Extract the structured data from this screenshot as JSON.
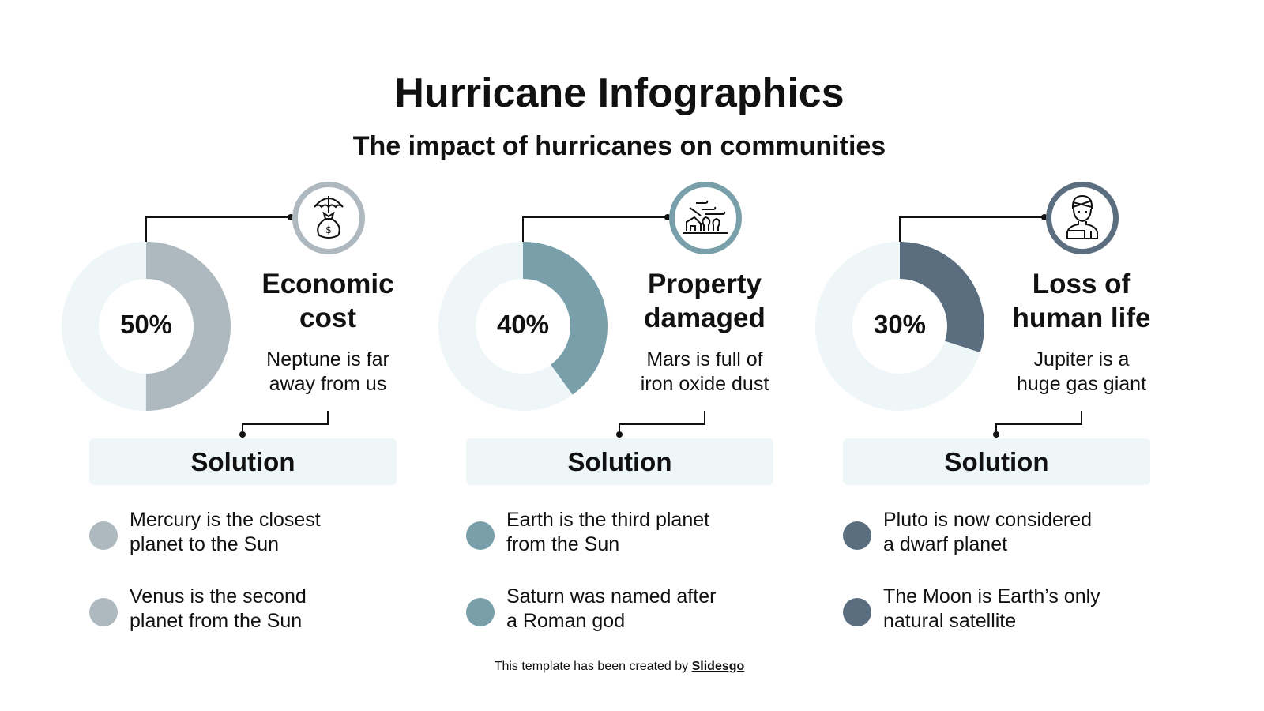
{
  "title": "Hurricane Infographics",
  "subtitle": "The impact of hurricanes on communities",
  "colors": {
    "light": "#eef6f7",
    "line": "#111111"
  },
  "columns": [
    {
      "percent": 50,
      "percent_label": "50%",
      "color": "#aeb9bf",
      "icon": "umbrella-money-bag-icon",
      "title_lines": [
        "Economic",
        "cost"
      ],
      "desc_lines": [
        "Neptune is far",
        "away from us"
      ],
      "solution": "Solution",
      "bullets": [
        [
          "Mercury is the closest",
          "planet to the Sun"
        ],
        [
          "Venus is the second",
          "planet from the Sun"
        ]
      ]
    },
    {
      "percent": 40,
      "percent_label": "40%",
      "color": "#789faa",
      "icon": "wind-damaged-house-icon",
      "title_lines": [
        "Property",
        "damaged"
      ],
      "desc_lines": [
        "Mars is full of",
        "iron oxide dust"
      ],
      "solution": "Solution",
      "bullets": [
        [
          "Earth is the third planet",
          "from the Sun"
        ],
        [
          "Saturn was named after",
          "a Roman god"
        ]
      ]
    },
    {
      "percent": 30,
      "percent_label": "30%",
      "color": "#5a6e80",
      "icon": "injured-person-icon",
      "title_lines": [
        "Loss of",
        "human life"
      ],
      "desc_lines": [
        "Jupiter is a",
        "huge gas giant"
      ],
      "solution": "Solution",
      "bullets": [
        [
          "Pluto is now considered",
          "a dwarf planet"
        ],
        [
          "The Moon is Earth’s only",
          "natural satellite"
        ]
      ]
    }
  ],
  "footer": {
    "text": "This template has been created by ",
    "link": "Slidesgo"
  }
}
